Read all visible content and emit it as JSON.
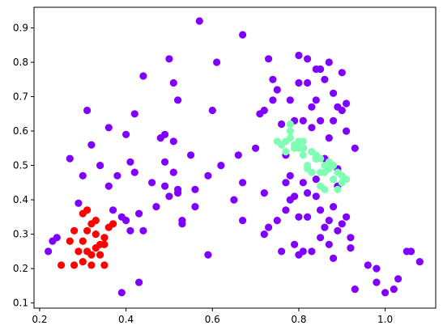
{
  "chart_data": {
    "type": "scatter",
    "title": "",
    "xlabel": "",
    "ylabel": "",
    "xlim": [
      0.187,
      1.117
    ],
    "ylim": [
      0.085,
      0.96
    ],
    "xticks": [
      0.2,
      0.4,
      0.6,
      0.8,
      1.0
    ],
    "yticks": [
      0.1,
      0.2,
      0.3,
      0.4,
      0.5,
      0.6,
      0.7,
      0.8,
      0.9
    ],
    "xtick_labels": [
      "0.2",
      "0.4",
      "0.6",
      "0.8",
      "1.0"
    ],
    "ytick_labels": [
      "0.1",
      "0.2",
      "0.3",
      "0.4",
      "0.5",
      "0.6",
      "0.7",
      "0.8",
      "0.9"
    ],
    "grid": false,
    "series": [
      {
        "color": "#8000ff",
        "points": [
          [
            0.22,
            0.25
          ],
          [
            0.23,
            0.28
          ],
          [
            0.24,
            0.29
          ],
          [
            0.27,
            0.52
          ],
          [
            0.29,
            0.39
          ],
          [
            0.3,
            0.47
          ],
          [
            0.31,
            0.66
          ],
          [
            0.32,
            0.56
          ],
          [
            0.34,
            0.5
          ],
          [
            0.36,
            0.61
          ],
          [
            0.36,
            0.44
          ],
          [
            0.37,
            0.37
          ],
          [
            0.38,
            0.47
          ],
          [
            0.39,
            0.13
          ],
          [
            0.39,
            0.35
          ],
          [
            0.4,
            0.59
          ],
          [
            0.4,
            0.34
          ],
          [
            0.41,
            0.51
          ],
          [
            0.41,
            0.31
          ],
          [
            0.42,
            0.48
          ],
          [
            0.42,
            0.65
          ],
          [
            0.43,
            0.36
          ],
          [
            0.43,
            0.16
          ],
          [
            0.44,
            0.31
          ],
          [
            0.44,
            0.76
          ],
          [
            0.46,
            0.45
          ],
          [
            0.47,
            0.38
          ],
          [
            0.48,
            0.58
          ],
          [
            0.49,
            0.59
          ],
          [
            0.49,
            0.51
          ],
          [
            0.49,
            0.44
          ],
          [
            0.5,
            0.41
          ],
          [
            0.5,
            0.81
          ],
          [
            0.51,
            0.57
          ],
          [
            0.51,
            0.74
          ],
          [
            0.51,
            0.48
          ],
          [
            0.52,
            0.69
          ],
          [
            0.52,
            0.43
          ],
          [
            0.52,
            0.42
          ],
          [
            0.53,
            0.34
          ],
          [
            0.53,
            0.33
          ],
          [
            0.55,
            0.53
          ],
          [
            0.56,
            0.43
          ],
          [
            0.56,
            0.38
          ],
          [
            0.57,
            0.92
          ],
          [
            0.59,
            0.24
          ],
          [
            0.59,
            0.47
          ],
          [
            0.6,
            0.66
          ],
          [
            0.61,
            0.8
          ],
          [
            0.62,
            0.5
          ],
          [
            0.65,
            0.4
          ],
          [
            0.66,
            0.53
          ],
          [
            0.67,
            0.88
          ],
          [
            0.67,
            0.45
          ],
          [
            0.67,
            0.34
          ],
          [
            0.7,
            0.55
          ],
          [
            0.71,
            0.65
          ],
          [
            0.72,
            0.66
          ],
          [
            0.72,
            0.42
          ],
          [
            0.72,
            0.3
          ],
          [
            0.73,
            0.81
          ],
          [
            0.73,
            0.32
          ],
          [
            0.74,
            0.75
          ],
          [
            0.74,
            0.69
          ],
          [
            0.75,
            0.72
          ],
          [
            0.75,
            0.34
          ],
          [
            0.76,
            0.25
          ],
          [
            0.76,
            0.62
          ],
          [
            0.77,
            0.45
          ],
          [
            0.77,
            0.37
          ],
          [
            0.77,
            0.53
          ],
          [
            0.78,
            0.47
          ],
          [
            0.78,
            0.4
          ],
          [
            0.78,
            0.69
          ],
          [
            0.79,
            0.63
          ],
          [
            0.79,
            0.41
          ],
          [
            0.79,
            0.27
          ],
          [
            0.8,
            0.82
          ],
          [
            0.8,
            0.74
          ],
          [
            0.8,
            0.35
          ],
          [
            0.8,
            0.24
          ],
          [
            0.81,
            0.63
          ],
          [
            0.81,
            0.55
          ],
          [
            0.81,
            0.45
          ],
          [
            0.81,
            0.25
          ],
          [
            0.82,
            0.81
          ],
          [
            0.82,
            0.74
          ],
          [
            0.82,
            0.42
          ],
          [
            0.82,
            0.35
          ],
          [
            0.83,
            0.67
          ],
          [
            0.83,
            0.61
          ],
          [
            0.83,
            0.25
          ],
          [
            0.84,
            0.78
          ],
          [
            0.84,
            0.69
          ],
          [
            0.84,
            0.52
          ],
          [
            0.84,
            0.46
          ],
          [
            0.84,
            0.41
          ],
          [
            0.85,
            0.78
          ],
          [
            0.85,
            0.63
          ],
          [
            0.85,
            0.37
          ],
          [
            0.85,
            0.29
          ],
          [
            0.86,
            0.75
          ],
          [
            0.86,
            0.52
          ],
          [
            0.86,
            0.32
          ],
          [
            0.87,
            0.8
          ],
          [
            0.87,
            0.58
          ],
          [
            0.87,
            0.34
          ],
          [
            0.87,
            0.27
          ],
          [
            0.88,
            0.71
          ],
          [
            0.88,
            0.63
          ],
          [
            0.88,
            0.38
          ],
          [
            0.88,
            0.23
          ],
          [
            0.89,
            0.67
          ],
          [
            0.89,
            0.49
          ],
          [
            0.89,
            0.44
          ],
          [
            0.89,
            0.31
          ],
          [
            0.9,
            0.77
          ],
          [
            0.9,
            0.66
          ],
          [
            0.9,
            0.33
          ],
          [
            0.91,
            0.68
          ],
          [
            0.91,
            0.6
          ],
          [
            0.91,
            0.35
          ],
          [
            0.92,
            0.29
          ],
          [
            0.92,
            0.26
          ],
          [
            0.93,
            0.55
          ],
          [
            0.93,
            0.14
          ],
          [
            0.96,
            0.21
          ],
          [
            0.98,
            0.16
          ],
          [
            0.98,
            0.2
          ],
          [
            1.0,
            0.13
          ],
          [
            1.02,
            0.14
          ],
          [
            1.03,
            0.17
          ],
          [
            1.05,
            0.25
          ],
          [
            1.06,
            0.25
          ],
          [
            1.08,
            0.22
          ]
        ]
      },
      {
        "color": "#ff0000",
        "points": [
          [
            0.25,
            0.21
          ],
          [
            0.27,
            0.28
          ],
          [
            0.28,
            0.21
          ],
          [
            0.28,
            0.31
          ],
          [
            0.29,
            0.25
          ],
          [
            0.3,
            0.36
          ],
          [
            0.3,
            0.22
          ],
          [
            0.3,
            0.28
          ],
          [
            0.31,
            0.37
          ],
          [
            0.31,
            0.31
          ],
          [
            0.31,
            0.25
          ],
          [
            0.32,
            0.24
          ],
          [
            0.32,
            0.21
          ],
          [
            0.32,
            0.33
          ],
          [
            0.33,
            0.34
          ],
          [
            0.33,
            0.26
          ],
          [
            0.33,
            0.3
          ],
          [
            0.34,
            0.27
          ],
          [
            0.34,
            0.24
          ],
          [
            0.35,
            0.21
          ],
          [
            0.35,
            0.29
          ],
          [
            0.35,
            0.27
          ],
          [
            0.36,
            0.32
          ],
          [
            0.37,
            0.33
          ]
        ]
      },
      {
        "color": "#80ffb4",
        "points": [
          [
            0.75,
            0.57
          ],
          [
            0.76,
            0.56
          ],
          [
            0.77,
            0.54
          ],
          [
            0.77,
            0.57
          ],
          [
            0.78,
            0.58
          ],
          [
            0.78,
            0.6
          ],
          [
            0.78,
            0.62
          ],
          [
            0.79,
            0.55
          ],
          [
            0.79,
            0.56
          ],
          [
            0.8,
            0.57
          ],
          [
            0.8,
            0.55
          ],
          [
            0.81,
            0.53
          ],
          [
            0.81,
            0.55
          ],
          [
            0.81,
            0.57
          ],
          [
            0.82,
            0.5
          ],
          [
            0.82,
            0.49
          ],
          [
            0.83,
            0.54
          ],
          [
            0.83,
            0.48
          ],
          [
            0.84,
            0.53
          ],
          [
            0.84,
            0.52
          ],
          [
            0.85,
            0.52
          ],
          [
            0.85,
            0.48
          ],
          [
            0.85,
            0.44
          ],
          [
            0.86,
            0.43
          ],
          [
            0.86,
            0.5
          ],
          [
            0.86,
            0.48
          ],
          [
            0.87,
            0.49
          ],
          [
            0.87,
            0.51
          ],
          [
            0.88,
            0.5
          ],
          [
            0.88,
            0.46
          ],
          [
            0.89,
            0.48
          ],
          [
            0.89,
            0.43
          ],
          [
            0.9,
            0.47
          ],
          [
            0.9,
            0.45
          ],
          [
            0.91,
            0.46
          ]
        ]
      }
    ]
  }
}
